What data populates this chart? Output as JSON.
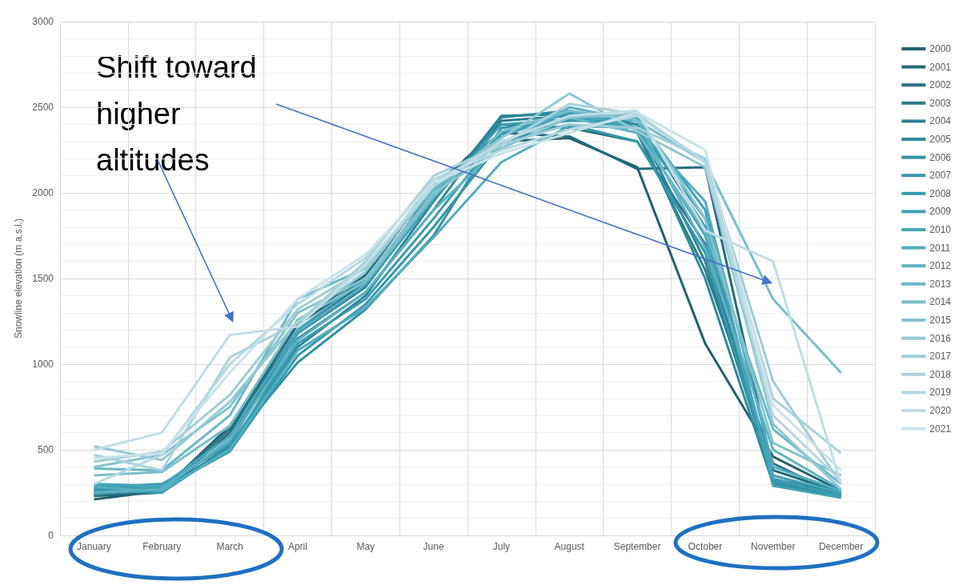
{
  "chart_data": {
    "type": "line",
    "ylabel": "Snowline elevation (m a.s.l.)",
    "annotations": [
      "Shift toward higher altitudes"
    ],
    "categories": [
      "January",
      "February",
      "March",
      "April",
      "May",
      "June",
      "July",
      "August",
      "September",
      "October",
      "November",
      "December"
    ],
    "ylim": [
      0,
      3000
    ],
    "yticks": [
      0,
      500,
      1000,
      1500,
      2000,
      2500,
      3000
    ],
    "grid": true,
    "legend": "right",
    "marker": "none",
    "line_style": "solid",
    "series": [
      {
        "name": "2000",
        "color": "#21616f",
        "values": [
          210,
          260,
          640,
          1230,
          1500,
          2000,
          2300,
          2320,
          2150,
          1120,
          460,
          260
        ]
      },
      {
        "name": "2001",
        "color": "#246a79",
        "values": [
          230,
          250,
          600,
          1250,
          1520,
          2050,
          2350,
          2330,
          2140,
          2150,
          380,
          250
        ]
      },
      {
        "name": "2002",
        "color": "#277383",
        "values": [
          240,
          270,
          620,
          1200,
          1480,
          2020,
          2400,
          2380,
          2300,
          1700,
          350,
          240
        ]
      },
      {
        "name": "2003",
        "color": "#2a7b8c",
        "values": [
          260,
          260,
          560,
          1180,
          1450,
          1980,
          2420,
          2450,
          2350,
          1550,
          420,
          230
        ]
      },
      {
        "name": "2004",
        "color": "#2d8395",
        "values": [
          250,
          260,
          520,
          1100,
          1400,
          1950,
          2450,
          2460,
          2400,
          1600,
          330,
          240
        ]
      },
      {
        "name": "2005",
        "color": "#2f8a9d",
        "values": [
          270,
          280,
          500,
          1150,
          1420,
          1900,
          2440,
          2480,
          2380,
          1500,
          300,
          230
        ]
      },
      {
        "name": "2006",
        "color": "#3391a5",
        "values": [
          280,
          300,
          530,
          1010,
          1320,
          1750,
          2380,
          2420,
          2420,
          1800,
          310,
          225
        ]
      },
      {
        "name": "2007",
        "color": "#3797ab",
        "values": [
          240,
          270,
          490,
          1050,
          1350,
          1800,
          2300,
          2400,
          2300,
          1650,
          320,
          235
        ]
      },
      {
        "name": "2008",
        "color": "#3a9cb0",
        "values": [
          260,
          250,
          510,
          1120,
          1380,
          1850,
          2350,
          2440,
          2380,
          1850,
          330,
          230
        ]
      },
      {
        "name": "2009",
        "color": "#3fa1b5",
        "values": [
          290,
          280,
          540,
          1180,
          1460,
          1960,
          2400,
          2430,
          2440,
          1900,
          290,
          220
        ]
      },
      {
        "name": "2010",
        "color": "#46a7ba",
        "values": [
          300,
          290,
          580,
          1200,
          1500,
          2000,
          2330,
          2470,
          2380,
          1750,
          350,
          250
        ]
      },
      {
        "name": "2011",
        "color": "#52adbe",
        "values": [
          280,
          260,
          500,
          1080,
          1330,
          1740,
          2180,
          2390,
          2380,
          1950,
          400,
          260
        ]
      },
      {
        "name": "2012",
        "color": "#5eb2c2",
        "values": [
          250,
          270,
          560,
          1140,
          1420,
          1900,
          2280,
          2500,
          2420,
          1680,
          500,
          270
        ]
      },
      {
        "name": "2013",
        "color": "#6bb8c6",
        "values": [
          390,
          380,
          700,
          1380,
          1560,
          2020,
          2300,
          2440,
          2350,
          1780,
          620,
          300
        ]
      },
      {
        "name": "2014",
        "color": "#78becb",
        "values": [
          350,
          370,
          640,
          1260,
          1480,
          1980,
          2360,
          2480,
          2420,
          2180,
          1380,
          950
        ]
      },
      {
        "name": "2015",
        "color": "#85c3cf",
        "values": [
          400,
          470,
          750,
          1300,
          1500,
          2000,
          2260,
          2440,
          2460,
          1850,
          540,
          350
        ]
      },
      {
        "name": "2016",
        "color": "#92c8d4",
        "values": [
          520,
          440,
          780,
          1250,
          1540,
          2040,
          2320,
          2580,
          2360,
          2150,
          650,
          270
        ]
      },
      {
        "name": "2017",
        "color": "#9ecdd8",
        "values": [
          430,
          490,
          820,
          1320,
          1560,
          2060,
          2280,
          2400,
          2380,
          2200,
          900,
          300
        ]
      },
      {
        "name": "2018",
        "color": "#aad2dc",
        "values": [
          470,
          380,
          1040,
          1240,
          1600,
          2100,
          2280,
          2520,
          2460,
          2180,
          800,
          480
        ]
      },
      {
        "name": "2019",
        "color": "#b5d8e1",
        "values": [
          300,
          470,
          1000,
          1350,
          1620,
          2080,
          2250,
          2370,
          2450,
          2180,
          700,
          320
        ]
      },
      {
        "name": "2020",
        "color": "#bfdde6",
        "values": [
          500,
          600,
          1170,
          1220,
          1580,
          2040,
          2300,
          2450,
          2480,
          1780,
          1600,
          300
        ]
      },
      {
        "name": "2021",
        "color": "#c9e2ea",
        "values": [
          450,
          480,
          950,
          1380,
          1640,
          2060,
          2230,
          2350,
          2470,
          2250,
          760,
          380
        ]
      }
    ]
  }
}
